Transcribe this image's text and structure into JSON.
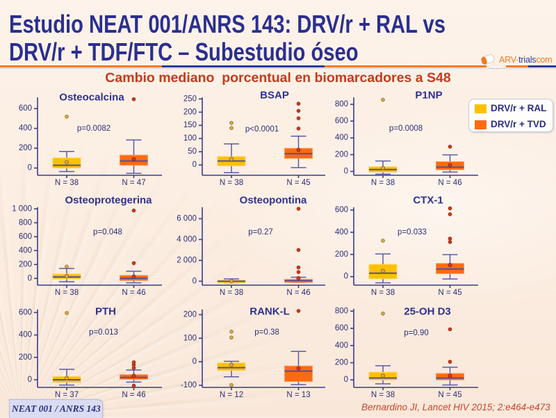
{
  "slide": {
    "title_line1": "Estudio NEAT 001/ANRS 143: DRV/r + RAL vs",
    "title_line2": "DRV/r + TDF/FTC – Subestudio óseo",
    "subtitle": "Cambio mediano  porcentual en biomarcadores a S48",
    "logo": {
      "part1": "ARV-",
      "part2": "trials",
      "part3": "com"
    },
    "study_label": "NEAT 001 / ANRS 143",
    "citation": "Bernardino JI, Lancet HIV 2015; 2:e464-e473"
  },
  "legend": [
    {
      "label": "DRV/r + RAL",
      "color": "#FFC000"
    },
    {
      "label": "DRV/r + TVD",
      "color": "#FF6A10"
    }
  ],
  "colors": {
    "series_box_stroke": [
      "#FFD45A",
      "#FF9A52"
    ],
    "series_point_fill": [
      "#D9AA48",
      "#D2391F"
    ],
    "series_point_stroke": [
      "#8A6A2A",
      "#8A2A1A"
    ],
    "axis": "#3B3B8C",
    "title": "#2B2F8F",
    "subtitle": "#C23B1E"
  },
  "chart_data": [
    {
      "type": "boxplot",
      "title": "Osteocalcina",
      "p_value": "p=0.0082",
      "ylim": [
        -73,
        713
      ],
      "yticks": [
        0,
        200,
        400,
        600
      ],
      "ytick_labels": [
        "0",
        "200",
        "400",
        "600"
      ],
      "groups": [
        {
          "series": 0,
          "n_label": "N = 38",
          "whisker_low": -35,
          "q1": 0,
          "median": 28,
          "q3": 102,
          "whisker_high": 167,
          "mean": 59,
          "outliers": [
            519
          ]
        },
        {
          "series": 1,
          "n_label": "N = 47",
          "whisker_low": -54,
          "q1": 28,
          "median": 71,
          "q3": 130,
          "whisker_high": 283,
          "mean": 88,
          "outliers": [
            694
          ]
        }
      ]
    },
    {
      "type": "boxplot",
      "title": "BSAP",
      "p_value": "p<0.0001",
      "ylim": [
        -39,
        256
      ],
      "yticks": [
        0,
        50,
        100,
        150,
        200,
        250
      ],
      "ytick_labels": [
        "0",
        "50",
        "100",
        "150",
        "200",
        "250"
      ],
      "groups": [
        {
          "series": 0,
          "n_label": "N = 38",
          "whisker_low": -29,
          "q1": -3,
          "median": 15,
          "q3": 32,
          "whisker_high": 80,
          "mean": 22,
          "outliers": [
            140,
            159
          ]
        },
        {
          "series": 1,
          "n_label": "N = 45",
          "whisker_low": -10,
          "q1": 25,
          "median": 43,
          "q3": 63,
          "whisker_high": 109,
          "mean": 57,
          "outliers": [
            138,
            177,
            205,
            232
          ]
        }
      ]
    },
    {
      "type": "boxplot",
      "title": "P1NP",
      "p_value": "p=0.0008",
      "ylim": [
        -46,
        883
      ],
      "yticks": [
        0,
        200,
        400,
        600,
        800
      ],
      "ytick_labels": [
        "0",
        "200",
        "400",
        "600",
        "800"
      ],
      "groups": [
        {
          "series": 0,
          "n_label": "N = 38",
          "whisker_low": -33,
          "q1": -8,
          "median": 22,
          "q3": 55,
          "whisker_high": 124,
          "mean": 41,
          "outliers": [
            855
          ]
        },
        {
          "series": 1,
          "n_label": "N = 46",
          "whisker_low": -8,
          "q1": 20,
          "median": 50,
          "q3": 116,
          "whisker_high": 198,
          "mean": 74,
          "outliers": [
            295
          ]
        }
      ]
    },
    {
      "type": "boxplot",
      "title": "Osteoprotegerina",
      "p_value": "p=0.048",
      "ylim": [
        -97,
        1023
      ],
      "yticks": [
        0,
        200,
        400,
        600,
        800,
        1000
      ],
      "ytick_labels": [
        "0",
        "200",
        "400",
        "600",
        "800",
        "1 000"
      ],
      "groups": [
        {
          "series": 0,
          "n_label": "N = 38",
          "whisker_low": -47,
          "q1": -7,
          "median": 20,
          "q3": 63,
          "whisker_high": 143,
          "mean": 33,
          "outliers": [
            170
          ]
        },
        {
          "series": 1,
          "n_label": "N = 46",
          "whisker_low": -63,
          "q1": -30,
          "median": 0,
          "q3": 43,
          "whisker_high": 103,
          "mean": 26,
          "outliers": [
            220,
            976
          ]
        }
      ]
    },
    {
      "type": "boxplot",
      "title": "Osteopontina",
      "p_value": "p=0.27",
      "ylim": [
        -377,
        7097
      ],
      "yticks": [
        0,
        2000,
        4000,
        6000
      ],
      "ytick_labels": [
        "0",
        "2 000",
        "4 000",
        "6 000"
      ],
      "groups": [
        {
          "series": 0,
          "n_label": "N = 38",
          "whisker_low": -150,
          "q1": -150,
          "median": 0,
          "q3": 110,
          "whisker_high": 220,
          "mean": 20,
          "outliers": []
        },
        {
          "series": 1,
          "n_label": "N = 46",
          "whisker_low": -110,
          "q1": -110,
          "median": 50,
          "q3": 180,
          "whisker_high": 380,
          "mean": 285,
          "outliers": [
            880,
            1325,
            3000,
            6950
          ]
        }
      ]
    },
    {
      "type": "boxplot",
      "title": "CTX-1",
      "p_value": "p=0.033",
      "ylim": [
        -77,
        625
      ],
      "yticks": [
        0,
        200,
        400,
        600
      ],
      "ytick_labels": [
        "0",
        "200",
        "400",
        "600"
      ],
      "groups": [
        {
          "series": 0,
          "n_label": "N = 38",
          "whisker_low": -56,
          "q1": -19,
          "median": 31,
          "q3": 110,
          "whisker_high": 204,
          "mean": 52,
          "outliers": [
            324
          ]
        },
        {
          "series": 1,
          "n_label": "N = 45",
          "whisker_low": -21,
          "q1": 27,
          "median": 69,
          "q3": 119,
          "whisker_high": 198,
          "mean": 104,
          "outliers": [
            312,
            343,
            562,
            615
          ]
        }
      ]
    },
    {
      "type": "boxplot",
      "title": "PTH",
      "p_value": "p=0.013",
      "ylim": [
        -68,
        627
      ],
      "yticks": [
        0,
        200,
        400,
        600
      ],
      "ytick_labels": [
        "0",
        "200",
        "400",
        "600"
      ],
      "groups": [
        {
          "series": 0,
          "n_label": "N = 37",
          "whisker_low": -47,
          "q1": -23,
          "median": 0,
          "q3": 29,
          "whisker_high": 93,
          "mean": 15,
          "outliers": [
            596
          ]
        },
        {
          "series": 1,
          "n_label": "N = 46",
          "whisker_low": -21,
          "q1": 4,
          "median": 21,
          "q3": 46,
          "whisker_high": 87,
          "mean": 35,
          "outliers": [
            -52,
            106,
            133,
            156
          ]
        }
      ]
    },
    {
      "type": "boxplot",
      "title": "RANK-L",
      "p_value": "p=0.38",
      "ylim": [
        -109,
        222
      ],
      "yticks": [
        -100,
        0,
        100,
        200
      ],
      "ytick_labels": [
        "-100",
        "0",
        "100",
        "200"
      ],
      "groups": [
        {
          "series": 0,
          "n_label": "N = 12",
          "whisker_low": -64,
          "q1": -37,
          "median": -25,
          "q3": -5,
          "whisker_high": 2,
          "mean": -13,
          "outliers": [
            -99,
            103,
            128
          ]
        },
        {
          "series": 1,
          "n_label": "N = 13",
          "whisker_low": -97,
          "q1": -84,
          "median": -40,
          "q3": -18,
          "whisker_high": 44,
          "mean": -28,
          "outliers": [
            216
          ]
        }
      ]
    },
    {
      "type": "boxplot",
      "title": "25-OH D3",
      "p_value": "p=0.90",
      "ylim": [
        -87,
        827
      ],
      "yticks": [
        0,
        200,
        400,
        600,
        800
      ],
      "ytick_labels": [
        "0",
        "200",
        "400",
        "600",
        "800"
      ],
      "groups": [
        {
          "series": 0,
          "n_label": "N = 38",
          "whisker_low": -46,
          "q1": 0,
          "median": 22,
          "q3": 89,
          "whisker_high": 165,
          "mean": 49,
          "outliers": [
            772
          ]
        },
        {
          "series": 1,
          "n_label": "N = 45",
          "whisker_low": -59,
          "q1": 0,
          "median": 22,
          "q3": 75,
          "whisker_high": 148,
          "mean": 49,
          "outliers": [
            211,
            589
          ]
        }
      ]
    }
  ]
}
